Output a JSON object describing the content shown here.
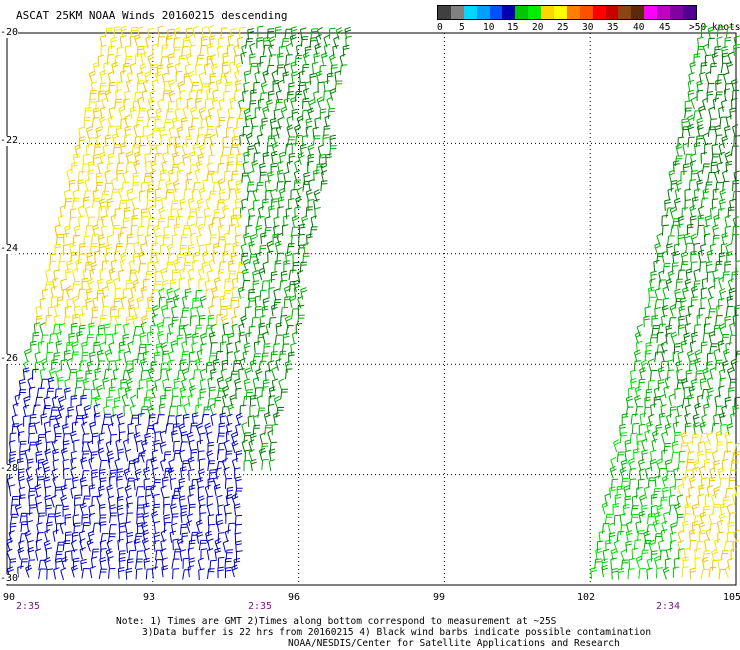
{
  "title": "ASCAT 25KM NOAA Winds 20160215 descending",
  "legend": {
    "colors": [
      "#404040",
      "#808080",
      "#00d8ff",
      "#00a0ff",
      "#0050ff",
      "#0000b0",
      "#00c800",
      "#00ee00",
      "#ffd700",
      "#ffff00",
      "#ff7f00",
      "#ff5000",
      "#ff0000",
      "#c80000",
      "#8b4513",
      "#5a2a0a",
      "#ff00ff",
      "#c000c0",
      "#8000a0",
      "#500090"
    ],
    "labels": [
      "0",
      "5",
      "10",
      "15",
      "20",
      "25",
      "30",
      "35",
      "40",
      "45",
      ">50"
    ],
    "unit": "knots"
  },
  "axes": {
    "x_ticks": [
      "90",
      "93",
      "96",
      "99",
      "102",
      "105"
    ],
    "y_ticks": [
      "-20",
      "-22",
      "-24",
      "-26",
      "-28",
      "-30"
    ]
  },
  "times": [
    "2:35",
    "2:35",
    "2:34"
  ],
  "notes": {
    "line1": "Note: 1) Times are GMT 2)Times along bottom correspond to measurement at ~25S",
    "line2": "3)Data buffer is 22 hrs from 20160215 4) Black wind barbs indicate possible contamination",
    "line3": "NOAA/NESDIS/Center for Satellite Applications and Research"
  },
  "map": {
    "lon_range": [
      90,
      105
    ],
    "lat_range": [
      -30,
      -20
    ],
    "swaths": [
      "west swath",
      "east swath"
    ]
  },
  "barb_colors": {
    "blue": "#0000c8",
    "green_dark": "#007800",
    "green": "#00b000",
    "green_light": "#00e000",
    "yellow": "#f5e600",
    "yellow_dark": "#f0c800"
  }
}
